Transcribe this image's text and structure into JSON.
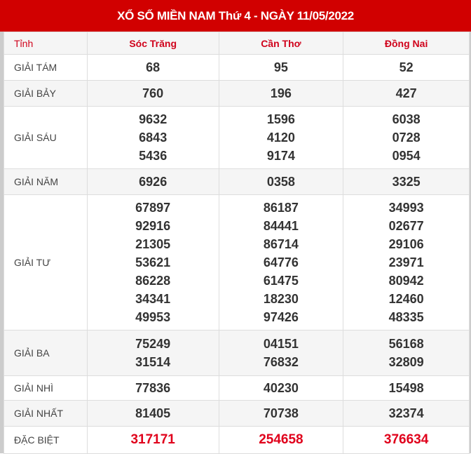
{
  "title": "XỔ SỐ MIỀN NAM Thứ 4 - NGÀY 11/05/2022",
  "columns": [
    "Tỉnh",
    "Sóc Trăng",
    "Cần Thơ",
    "Đồng Nai"
  ],
  "rows": [
    {
      "label": "GIẢI TÁM",
      "values": [
        [
          "68"
        ],
        [
          "95"
        ],
        [
          "52"
        ]
      ]
    },
    {
      "label": "GIẢI BẢY",
      "values": [
        [
          "760"
        ],
        [
          "196"
        ],
        [
          "427"
        ]
      ]
    },
    {
      "label": "GIẢI SÁU",
      "values": [
        [
          "9632",
          "6843",
          "5436"
        ],
        [
          "1596",
          "4120",
          "9174"
        ],
        [
          "6038",
          "0728",
          "0954"
        ]
      ]
    },
    {
      "label": "GIẢI NĂM",
      "values": [
        [
          "6926"
        ],
        [
          "0358"
        ],
        [
          "3325"
        ]
      ]
    },
    {
      "label": "GIẢI TƯ",
      "values": [
        [
          "67897",
          "92916",
          "21305",
          "53621",
          "86228",
          "34341",
          "49953"
        ],
        [
          "86187",
          "84441",
          "86714",
          "64776",
          "61475",
          "18230",
          "97426"
        ],
        [
          "34993",
          "02677",
          "29106",
          "23971",
          "80942",
          "12460",
          "48335"
        ]
      ]
    },
    {
      "label": "GIẢI BA",
      "values": [
        [
          "75249",
          "31514"
        ],
        [
          "04151",
          "76832"
        ],
        [
          "56168",
          "32809"
        ]
      ]
    },
    {
      "label": "GIẢI NHÌ",
      "values": [
        [
          "77836"
        ],
        [
          "40230"
        ],
        [
          "15498"
        ]
      ]
    },
    {
      "label": "GIẢI NHẤT",
      "values": [
        [
          "81405"
        ],
        [
          "70738"
        ],
        [
          "32374"
        ]
      ]
    },
    {
      "label": "ĐẶC BIỆT",
      "values": [
        [
          "317171"
        ],
        [
          "254658"
        ],
        [
          "376634"
        ]
      ]
    }
  ],
  "colors": {
    "header": "#d10000",
    "special": "#e0001b"
  }
}
